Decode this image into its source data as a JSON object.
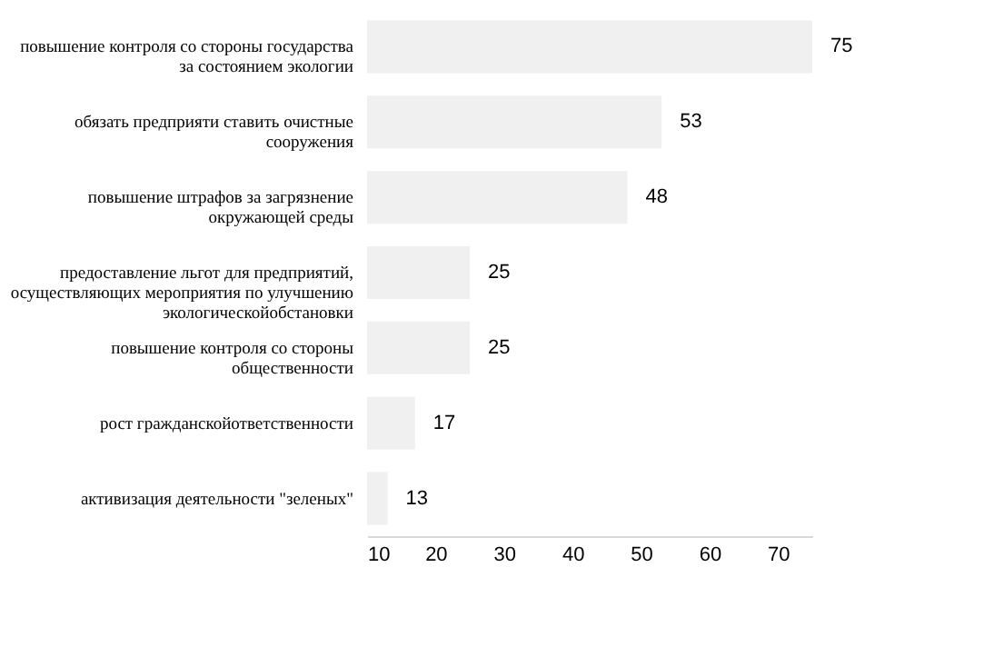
{
  "chart_data": {
    "type": "bar",
    "orientation": "horizontal",
    "categories": [
      "повышение контроля со стороны государства за состоянием экологии",
      "обязать предприяти ставить очистные сооружения",
      "повышение штрафов за загрязнение окружающей среды",
      "предоставление льгот для предприятий, осуществляющих мероприятия по улучшению экологическойобстановки",
      "повышение контроля со стороны общественности",
      "рост гражданскойответственности",
      "активизация деятельности \"зеленых\""
    ],
    "values": [
      75,
      53,
      48,
      25,
      25,
      17,
      13
    ],
    "color": "#f0f0f0",
    "xlim": [
      10,
      75
    ],
    "xticks": [
      10,
      20,
      30,
      40,
      50,
      60,
      70
    ],
    "data_labels": true,
    "grid": false
  }
}
